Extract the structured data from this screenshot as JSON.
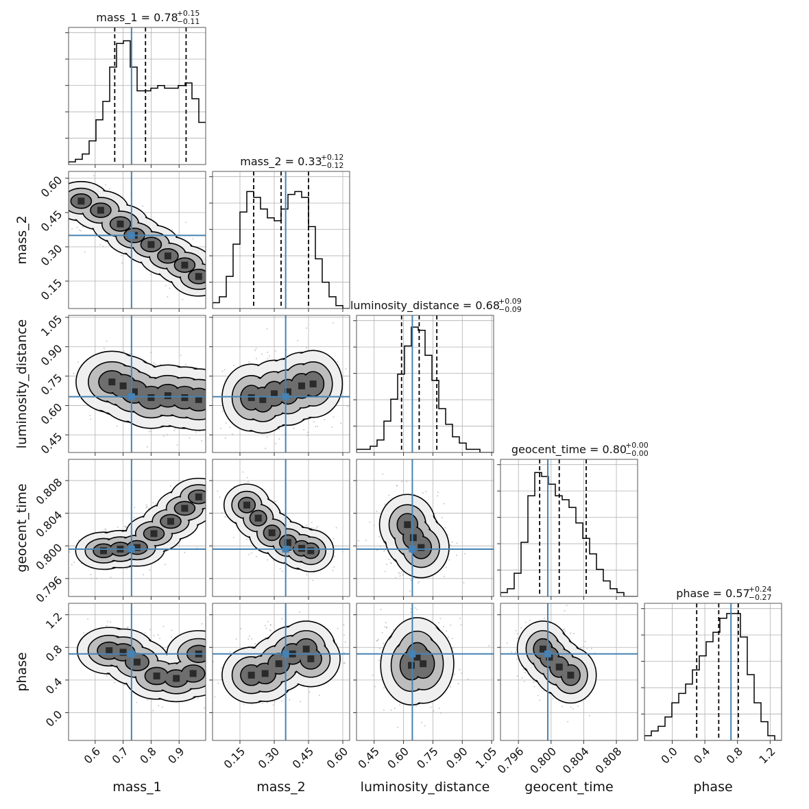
{
  "chart_data": {
    "type": "corner",
    "parameters": [
      "mass_1",
      "mass_2",
      "luminosity_distance",
      "geocent_time",
      "phase"
    ],
    "axis_labels": [
      "mass_1",
      "mass_2",
      "luminosity_distance",
      "geocent_time",
      "phase"
    ],
    "ranges": [
      [
        0.505,
        0.995
      ],
      [
        0.03,
        0.63
      ],
      [
        0.36,
        1.06
      ],
      [
        0.7938,
        0.8106
      ],
      [
        -0.34,
        1.34
      ]
    ],
    "truths": [
      0.73,
      0.35,
      0.645,
      0.7996,
      0.72
    ],
    "truth_color": "#4682b4",
    "contour_color": "#000000",
    "title_prefixes": [
      "mass_1 = ",
      "mass_2 = ",
      "luminosity_distance = ",
      "geocent_time = ",
      "phase = "
    ],
    "title_values": [
      "0.78",
      "0.33",
      "0.68",
      "0.80",
      "0.57"
    ],
    "title_plus": [
      "+0.15",
      "+0.12",
      "+0.09",
      "+0.00",
      "+0.24"
    ],
    "title_minus": [
      "−0.11",
      "−0.12",
      "−0.09",
      "−0.00",
      "−0.27"
    ],
    "quantiles": [
      [
        0.67,
        0.78,
        0.925
      ],
      [
        0.21,
        0.33,
        0.45
      ],
      [
        0.59,
        0.68,
        0.77
      ],
      [
        0.7986,
        0.801,
        0.8043
      ],
      [
        0.3,
        0.57,
        0.81
      ]
    ],
    "ticks": [
      {
        "values": [
          0.6,
          0.7,
          0.8,
          0.9
        ],
        "labels": [
          "0.6",
          "0.7",
          "0.8",
          "0.9"
        ]
      },
      {
        "values": [
          0.15,
          0.3,
          0.45,
          0.6
        ],
        "labels": [
          "0.15",
          "0.30",
          "0.45",
          "0.60"
        ]
      },
      {
        "values": [
          0.45,
          0.6,
          0.75,
          0.9,
          1.05
        ],
        "labels": [
          "0.45",
          "0.60",
          "0.75",
          "0.90",
          "1.05"
        ]
      },
      {
        "values": [
          0.796,
          0.8,
          0.804,
          0.808
        ],
        "labels": [
          "0.796",
          "0.800",
          "0.804",
          "0.808"
        ]
      },
      {
        "values": [
          0.0,
          0.4,
          0.8,
          1.2
        ],
        "labels": [
          "0.0",
          "0.4",
          "0.8",
          "1.2"
        ]
      }
    ],
    "histograms": [
      {
        "bins": 20,
        "counts": [
          1,
          2,
          4,
          9,
          17,
          24,
          37,
          46,
          47,
          37,
          28,
          28,
          29,
          30,
          29,
          29,
          30,
          31,
          25,
          16
        ],
        "ymax": 50
      },
      {
        "bins": 20,
        "counts": [
          2,
          4,
          11,
          22,
          33,
          40,
          38,
          34,
          31,
          30,
          34,
          39,
          40,
          38,
          28,
          17,
          9,
          4,
          1,
          0
        ],
        "ymax": 45
      },
      {
        "bins": 20,
        "counts": [
          1,
          1,
          2,
          4,
          10,
          17,
          25,
          34,
          40,
          39,
          31,
          23,
          14,
          9,
          5,
          3,
          1,
          1,
          0,
          0
        ],
        "ymax": 42
      },
      {
        "bins": 20,
        "counts": [
          1,
          2,
          6,
          14,
          26,
          32,
          31,
          29,
          26,
          25,
          23,
          19,
          15,
          11,
          7,
          4,
          2,
          1,
          0,
          0
        ],
        "ymax": 34
      },
      {
        "bins": 20,
        "counts": [
          1,
          2,
          3,
          5,
          8,
          10,
          12,
          15,
          18,
          21,
          23,
          26,
          27,
          27,
          22,
          14,
          8,
          4,
          1,
          0
        ],
        "ymax": 28
      }
    ],
    "pair_blobs": [
      {
        "pair": [
          1,
          0
        ],
        "points": [
          [
            0.55,
            0.5
          ],
          [
            0.62,
            0.46
          ],
          [
            0.69,
            0.4
          ],
          [
            0.74,
            0.35
          ],
          [
            0.8,
            0.31
          ],
          [
            0.86,
            0.26
          ],
          [
            0.92,
            0.22
          ],
          [
            0.97,
            0.17
          ]
        ],
        "sx": 0.035,
        "sy": 0.03
      },
      {
        "pair": [
          2,
          0
        ],
        "points": [
          [
            0.66,
            0.72
          ],
          [
            0.7,
            0.7
          ],
          [
            0.74,
            0.67
          ],
          [
            0.8,
            0.64
          ],
          [
            0.86,
            0.65
          ],
          [
            0.92,
            0.64
          ],
          [
            0.97,
            0.63
          ]
        ],
        "sx": 0.045,
        "sy": 0.055
      },
      {
        "pair": [
          2,
          1
        ],
        "points": [
          [
            0.2,
            0.64
          ],
          [
            0.25,
            0.63
          ],
          [
            0.3,
            0.66
          ],
          [
            0.36,
            0.67
          ],
          [
            0.42,
            0.7
          ],
          [
            0.47,
            0.71
          ]
        ],
        "sx": 0.045,
        "sy": 0.06
      },
      {
        "pair": [
          3,
          0
        ],
        "points": [
          [
            0.63,
            0.7994
          ],
          [
            0.69,
            0.7996
          ],
          [
            0.75,
            0.7998
          ],
          [
            0.81,
            0.8015
          ],
          [
            0.87,
            0.803
          ],
          [
            0.92,
            0.8046
          ],
          [
            0.97,
            0.806
          ]
        ],
        "sx": 0.035,
        "sy": 0.0008
      },
      {
        "pair": [
          3,
          1
        ],
        "points": [
          [
            0.18,
            0.805
          ],
          [
            0.23,
            0.8034
          ],
          [
            0.29,
            0.8016
          ],
          [
            0.36,
            0.8004
          ],
          [
            0.42,
            0.7997
          ],
          [
            0.46,
            0.7994
          ]
        ],
        "sx": 0.035,
        "sy": 0.0009
      },
      {
        "pair": [
          3,
          2
        ],
        "points": [
          [
            0.62,
            0.8026
          ],
          [
            0.65,
            0.801
          ],
          [
            0.69,
            0.7998
          ]
        ],
        "sx": 0.05,
        "sy": 0.0013
      },
      {
        "pair": [
          4,
          0
        ],
        "points": [
          [
            0.65,
            0.76
          ],
          [
            0.7,
            0.74
          ],
          [
            0.75,
            0.62
          ],
          [
            0.82,
            0.45
          ],
          [
            0.89,
            0.42
          ],
          [
            0.95,
            0.48
          ],
          [
            0.97,
            0.72
          ]
        ],
        "sx": 0.04,
        "sy": 0.1
      },
      {
        "pair": [
          4,
          1
        ],
        "points": [
          [
            0.2,
            0.46
          ],
          [
            0.26,
            0.48
          ],
          [
            0.32,
            0.6
          ],
          [
            0.38,
            0.72
          ],
          [
            0.44,
            0.78
          ],
          [
            0.46,
            0.66
          ]
        ],
        "sx": 0.045,
        "sy": 0.12
      },
      {
        "pair": [
          4,
          2
        ],
        "points": [
          [
            0.64,
            0.58
          ],
          [
            0.67,
            0.68
          ],
          [
            0.7,
            0.6
          ]
        ],
        "sx": 0.055,
        "sy": 0.17
      },
      {
        "pair": [
          4,
          3
        ],
        "points": [
          [
            0.799,
            0.78
          ],
          [
            0.7998,
            0.68
          ],
          [
            0.801,
            0.56
          ],
          [
            0.8024,
            0.46
          ]
        ],
        "sx": 0.0011,
        "sy": 0.12
      }
    ]
  }
}
